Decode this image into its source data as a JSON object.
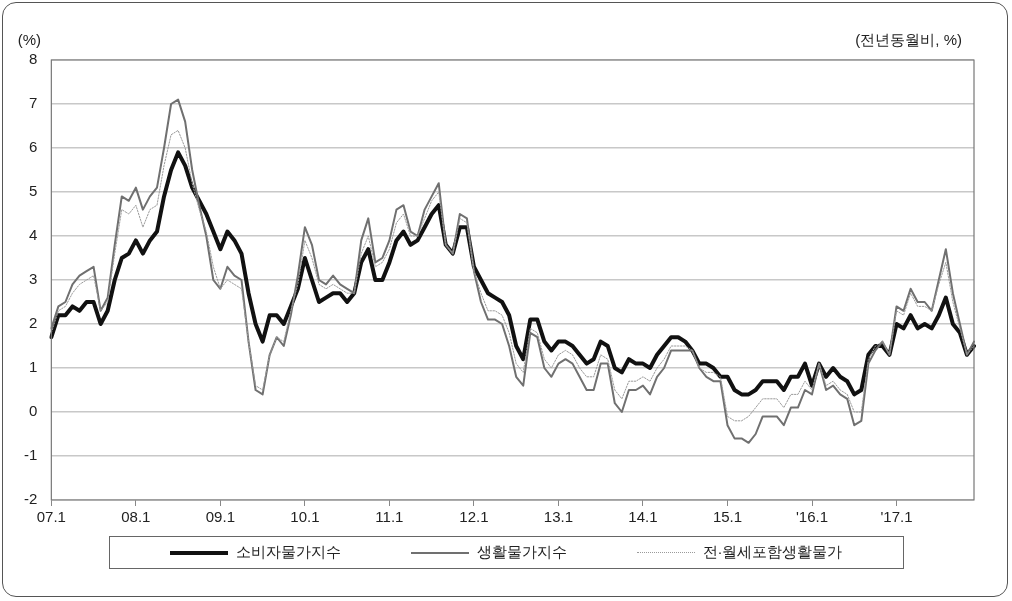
{
  "chart_data": {
    "type": "line",
    "ylabel": "(%)",
    "annotations": [
      "(전년동월비, %)"
    ],
    "categories": [
      "07.1",
      null,
      null,
      null,
      null,
      null,
      null,
      null,
      null,
      null,
      null,
      null,
      "08.1",
      null,
      null,
      null,
      null,
      null,
      null,
      null,
      null,
      null,
      null,
      null,
      "09.1",
      null,
      null,
      null,
      null,
      null,
      null,
      null,
      null,
      null,
      null,
      null,
      "10.1",
      null,
      null,
      null,
      null,
      null,
      null,
      null,
      null,
      null,
      null,
      null,
      "11.1",
      null,
      null,
      null,
      null,
      null,
      null,
      null,
      null,
      null,
      null,
      null,
      "12.1",
      null,
      null,
      null,
      null,
      null,
      null,
      null,
      null,
      null,
      null,
      null,
      "13.1",
      null,
      null,
      null,
      null,
      null,
      null,
      null,
      null,
      null,
      null,
      null,
      "14.1",
      null,
      null,
      null,
      null,
      null,
      null,
      null,
      null,
      null,
      null,
      null,
      "15.1",
      null,
      null,
      null,
      null,
      null,
      null,
      null,
      null,
      null,
      null,
      null,
      "'16.1",
      null,
      null,
      null,
      null,
      null,
      null,
      null,
      null,
      null,
      null,
      null,
      "'17.1",
      null,
      null,
      null,
      null,
      null,
      null,
      null,
      null,
      null,
      null,
      null
    ],
    "series": [
      {
        "name": "소비자물가지수",
        "color": "#111111",
        "line_style": "solid",
        "values": [
          1.7,
          2.2,
          2.2,
          2.4,
          2.3,
          2.5,
          2.5,
          2.0,
          2.3,
          3.0,
          3.5,
          3.6,
          3.9,
          3.6,
          3.9,
          4.1,
          4.9,
          5.5,
          5.9,
          5.6,
          5.1,
          4.8,
          4.5,
          4.1,
          3.7,
          4.1,
          3.9,
          3.6,
          2.7,
          2.0,
          1.6,
          2.2,
          2.2,
          2.0,
          2.4,
          2.8,
          3.5,
          3.0,
          2.5,
          2.6,
          2.7,
          2.7,
          2.5,
          2.7,
          3.4,
          3.7,
          3.0,
          3.0,
          3.4,
          3.9,
          4.1,
          3.8,
          3.9,
          4.2,
          4.5,
          4.7,
          3.8,
          3.6,
          4.2,
          4.2,
          3.3,
          3.0,
          2.7,
          2.6,
          2.5,
          2.2,
          1.5,
          1.2,
          2.1,
          2.1,
          1.6,
          1.4,
          1.6,
          1.6,
          1.5,
          1.3,
          1.1,
          1.2,
          1.6,
          1.5,
          1.0,
          0.9,
          1.2,
          1.1,
          1.1,
          1.0,
          1.3,
          1.5,
          1.7,
          1.7,
          1.6,
          1.4,
          1.1,
          1.1,
          1.0,
          0.8,
          0.8,
          0.5,
          0.4,
          0.4,
          0.5,
          0.7,
          0.7,
          0.7,
          0.5,
          0.8,
          0.8,
          1.1,
          0.6,
          1.1,
          0.8,
          1.0,
          0.8,
          0.7,
          0.4,
          0.5,
          1.3,
          1.5,
          1.5,
          1.3,
          2.0,
          1.9,
          2.2,
          1.9,
          2.0,
          1.9,
          2.2,
          2.6,
          2.0,
          1.8,
          1.3,
          1.5
        ]
      },
      {
        "name": "생활물가지수",
        "color": "#707070",
        "line_style": "solid",
        "values": [
          1.9,
          2.4,
          2.5,
          2.9,
          3.1,
          3.2,
          3.3,
          2.3,
          2.6,
          3.8,
          4.9,
          4.8,
          5.1,
          4.6,
          4.9,
          5.1,
          6.0,
          7.0,
          7.1,
          6.6,
          5.5,
          4.7,
          4.0,
          3.0,
          2.8,
          3.3,
          3.1,
          3.0,
          1.6,
          0.5,
          0.4,
          1.3,
          1.7,
          1.5,
          2.2,
          3.1,
          4.2,
          3.8,
          3.0,
          2.9,
          3.1,
          2.9,
          2.8,
          2.7,
          3.9,
          4.4,
          3.4,
          3.5,
          3.9,
          4.6,
          4.7,
          4.1,
          4.0,
          4.6,
          4.9,
          5.2,
          3.8,
          3.6,
          4.5,
          4.4,
          3.2,
          2.5,
          2.1,
          2.1,
          2.0,
          1.5,
          0.8,
          0.6,
          1.8,
          1.7,
          1.0,
          0.8,
          1.1,
          1.2,
          1.1,
          0.8,
          0.5,
          0.5,
          1.1,
          1.1,
          0.2,
          0.0,
          0.5,
          0.5,
          0.6,
          0.4,
          0.8,
          1.0,
          1.4,
          1.4,
          1.4,
          1.4,
          1.0,
          0.8,
          0.7,
          0.7,
          -0.3,
          -0.6,
          -0.6,
          -0.7,
          -0.5,
          -0.1,
          -0.1,
          -0.1,
          -0.3,
          0.1,
          0.1,
          0.5,
          0.4,
          1.1,
          0.5,
          0.6,
          0.4,
          0.3,
          -0.3,
          -0.2,
          1.1,
          1.4,
          1.6,
          1.3,
          2.4,
          2.3,
          2.8,
          2.5,
          2.5,
          2.3,
          3.0,
          3.7,
          2.7,
          2.0,
          1.3,
          1.6
        ]
      },
      {
        "name": "전·월세포함생활물가",
        "color": "#9a9a9a",
        "line_style": "dotted",
        "values": [
          1.8,
          2.3,
          2.4,
          2.7,
          2.9,
          3.0,
          3.1,
          2.3,
          2.5,
          3.6,
          4.6,
          4.5,
          4.7,
          4.2,
          4.6,
          4.7,
          5.6,
          6.3,
          6.4,
          6.0,
          5.2,
          4.6,
          4.1,
          3.3,
          2.8,
          3.0,
          2.9,
          2.8,
          1.6,
          0.6,
          0.5,
          1.3,
          1.7,
          1.6,
          2.3,
          2.9,
          3.9,
          3.5,
          2.9,
          2.8,
          2.9,
          2.8,
          2.7,
          2.7,
          3.6,
          4.0,
          3.3,
          3.4,
          3.7,
          4.3,
          4.5,
          4.0,
          4.0,
          4.4,
          4.8,
          5.0,
          3.8,
          3.6,
          4.4,
          4.3,
          3.2,
          2.7,
          2.3,
          2.3,
          2.2,
          1.8,
          1.1,
          0.9,
          1.9,
          1.8,
          1.2,
          1.0,
          1.3,
          1.4,
          1.3,
          1.0,
          0.8,
          0.8,
          1.3,
          1.2,
          0.5,
          0.3,
          0.7,
          0.7,
          0.8,
          0.7,
          1.0,
          1.2,
          1.5,
          1.5,
          1.5,
          1.4,
          1.0,
          0.9,
          0.9,
          0.8,
          -0.1,
          -0.2,
          -0.2,
          -0.1,
          0.1,
          0.3,
          0.3,
          0.3,
          0.1,
          0.4,
          0.4,
          0.7,
          0.5,
          1.1,
          0.6,
          0.7,
          0.5,
          0.4,
          0.0,
          0.0,
          1.2,
          1.5,
          1.6,
          1.3,
          2.3,
          2.2,
          2.7,
          2.4,
          2.4,
          2.3,
          2.9,
          3.4,
          2.5,
          1.9,
          1.3,
          1.5
        ]
      }
    ],
    "ylim": [
      -2,
      8
    ],
    "yticks": [
      -2,
      -1,
      0,
      1,
      2,
      3,
      4,
      5,
      6,
      7,
      8
    ],
    "grid": "y",
    "legend": "bottom",
    "marker": "none"
  }
}
